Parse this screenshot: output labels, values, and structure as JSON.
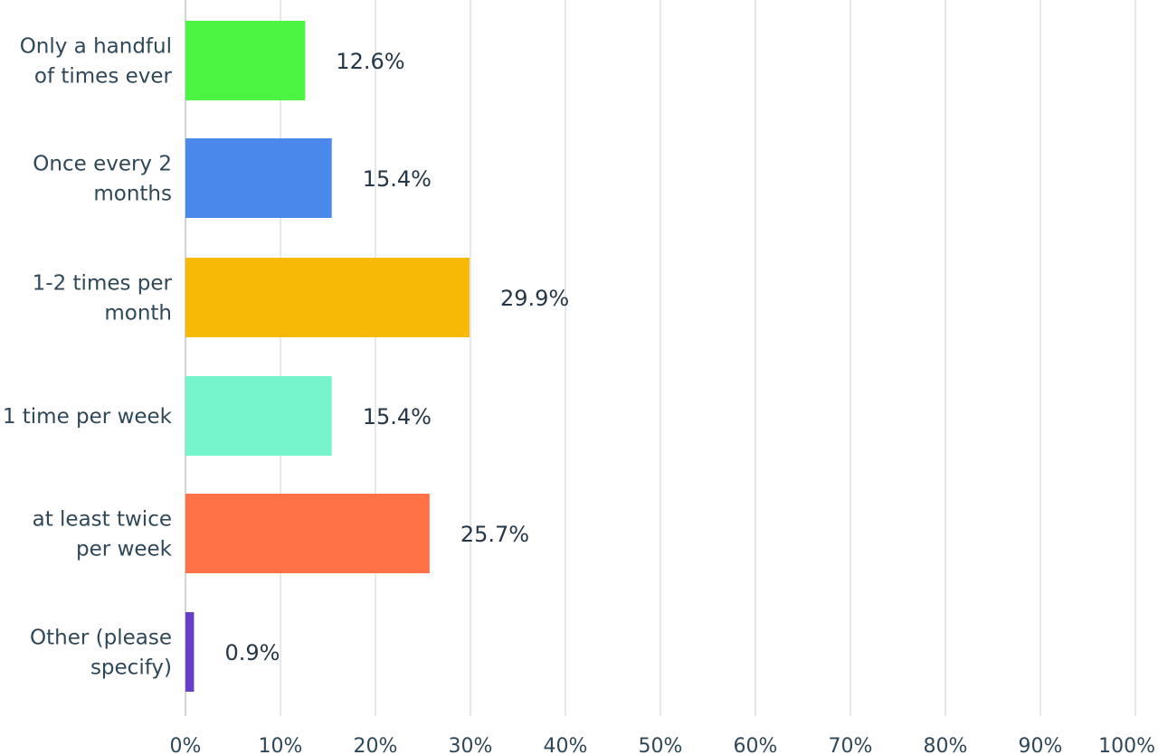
{
  "chart_data": {
    "type": "bar",
    "orientation": "horizontal",
    "categories": [
      "Only a handful of times ever",
      "Once every 2 months",
      "1-2 times per month",
      "1 time per week",
      "at least twice per week",
      "Other (please specify)"
    ],
    "category_label_lines": [
      [
        "Only a handful",
        "of times ever"
      ],
      [
        "Once every 2",
        "months"
      ],
      [
        "1-2 times per",
        "month"
      ],
      [
        "1 time per week"
      ],
      [
        "at least twice",
        "per week"
      ],
      [
        "Other (please",
        "specify)"
      ]
    ],
    "values": [
      12.6,
      15.4,
      29.9,
      15.4,
      25.7,
      0.9
    ],
    "value_labels": [
      "12.6%",
      "15.4%",
      "29.9%",
      "15.4%",
      "25.7%",
      "0.9%"
    ],
    "colors": [
      "#4cf542",
      "#4a88ec",
      "#f7b905",
      "#76f5cd",
      "#ff7146",
      "#6a3fc8"
    ],
    "xlim": [
      0,
      100
    ],
    "x_ticks": [
      0,
      10,
      20,
      30,
      40,
      50,
      60,
      70,
      80,
      90,
      100
    ],
    "x_tick_labels": [
      "0%",
      "10%",
      "20%",
      "30%",
      "40%",
      "50%",
      "60%",
      "70%",
      "80%",
      "90%",
      "100%"
    ],
    "grid": true,
    "title": "",
    "xlabel": "",
    "ylabel": ""
  }
}
